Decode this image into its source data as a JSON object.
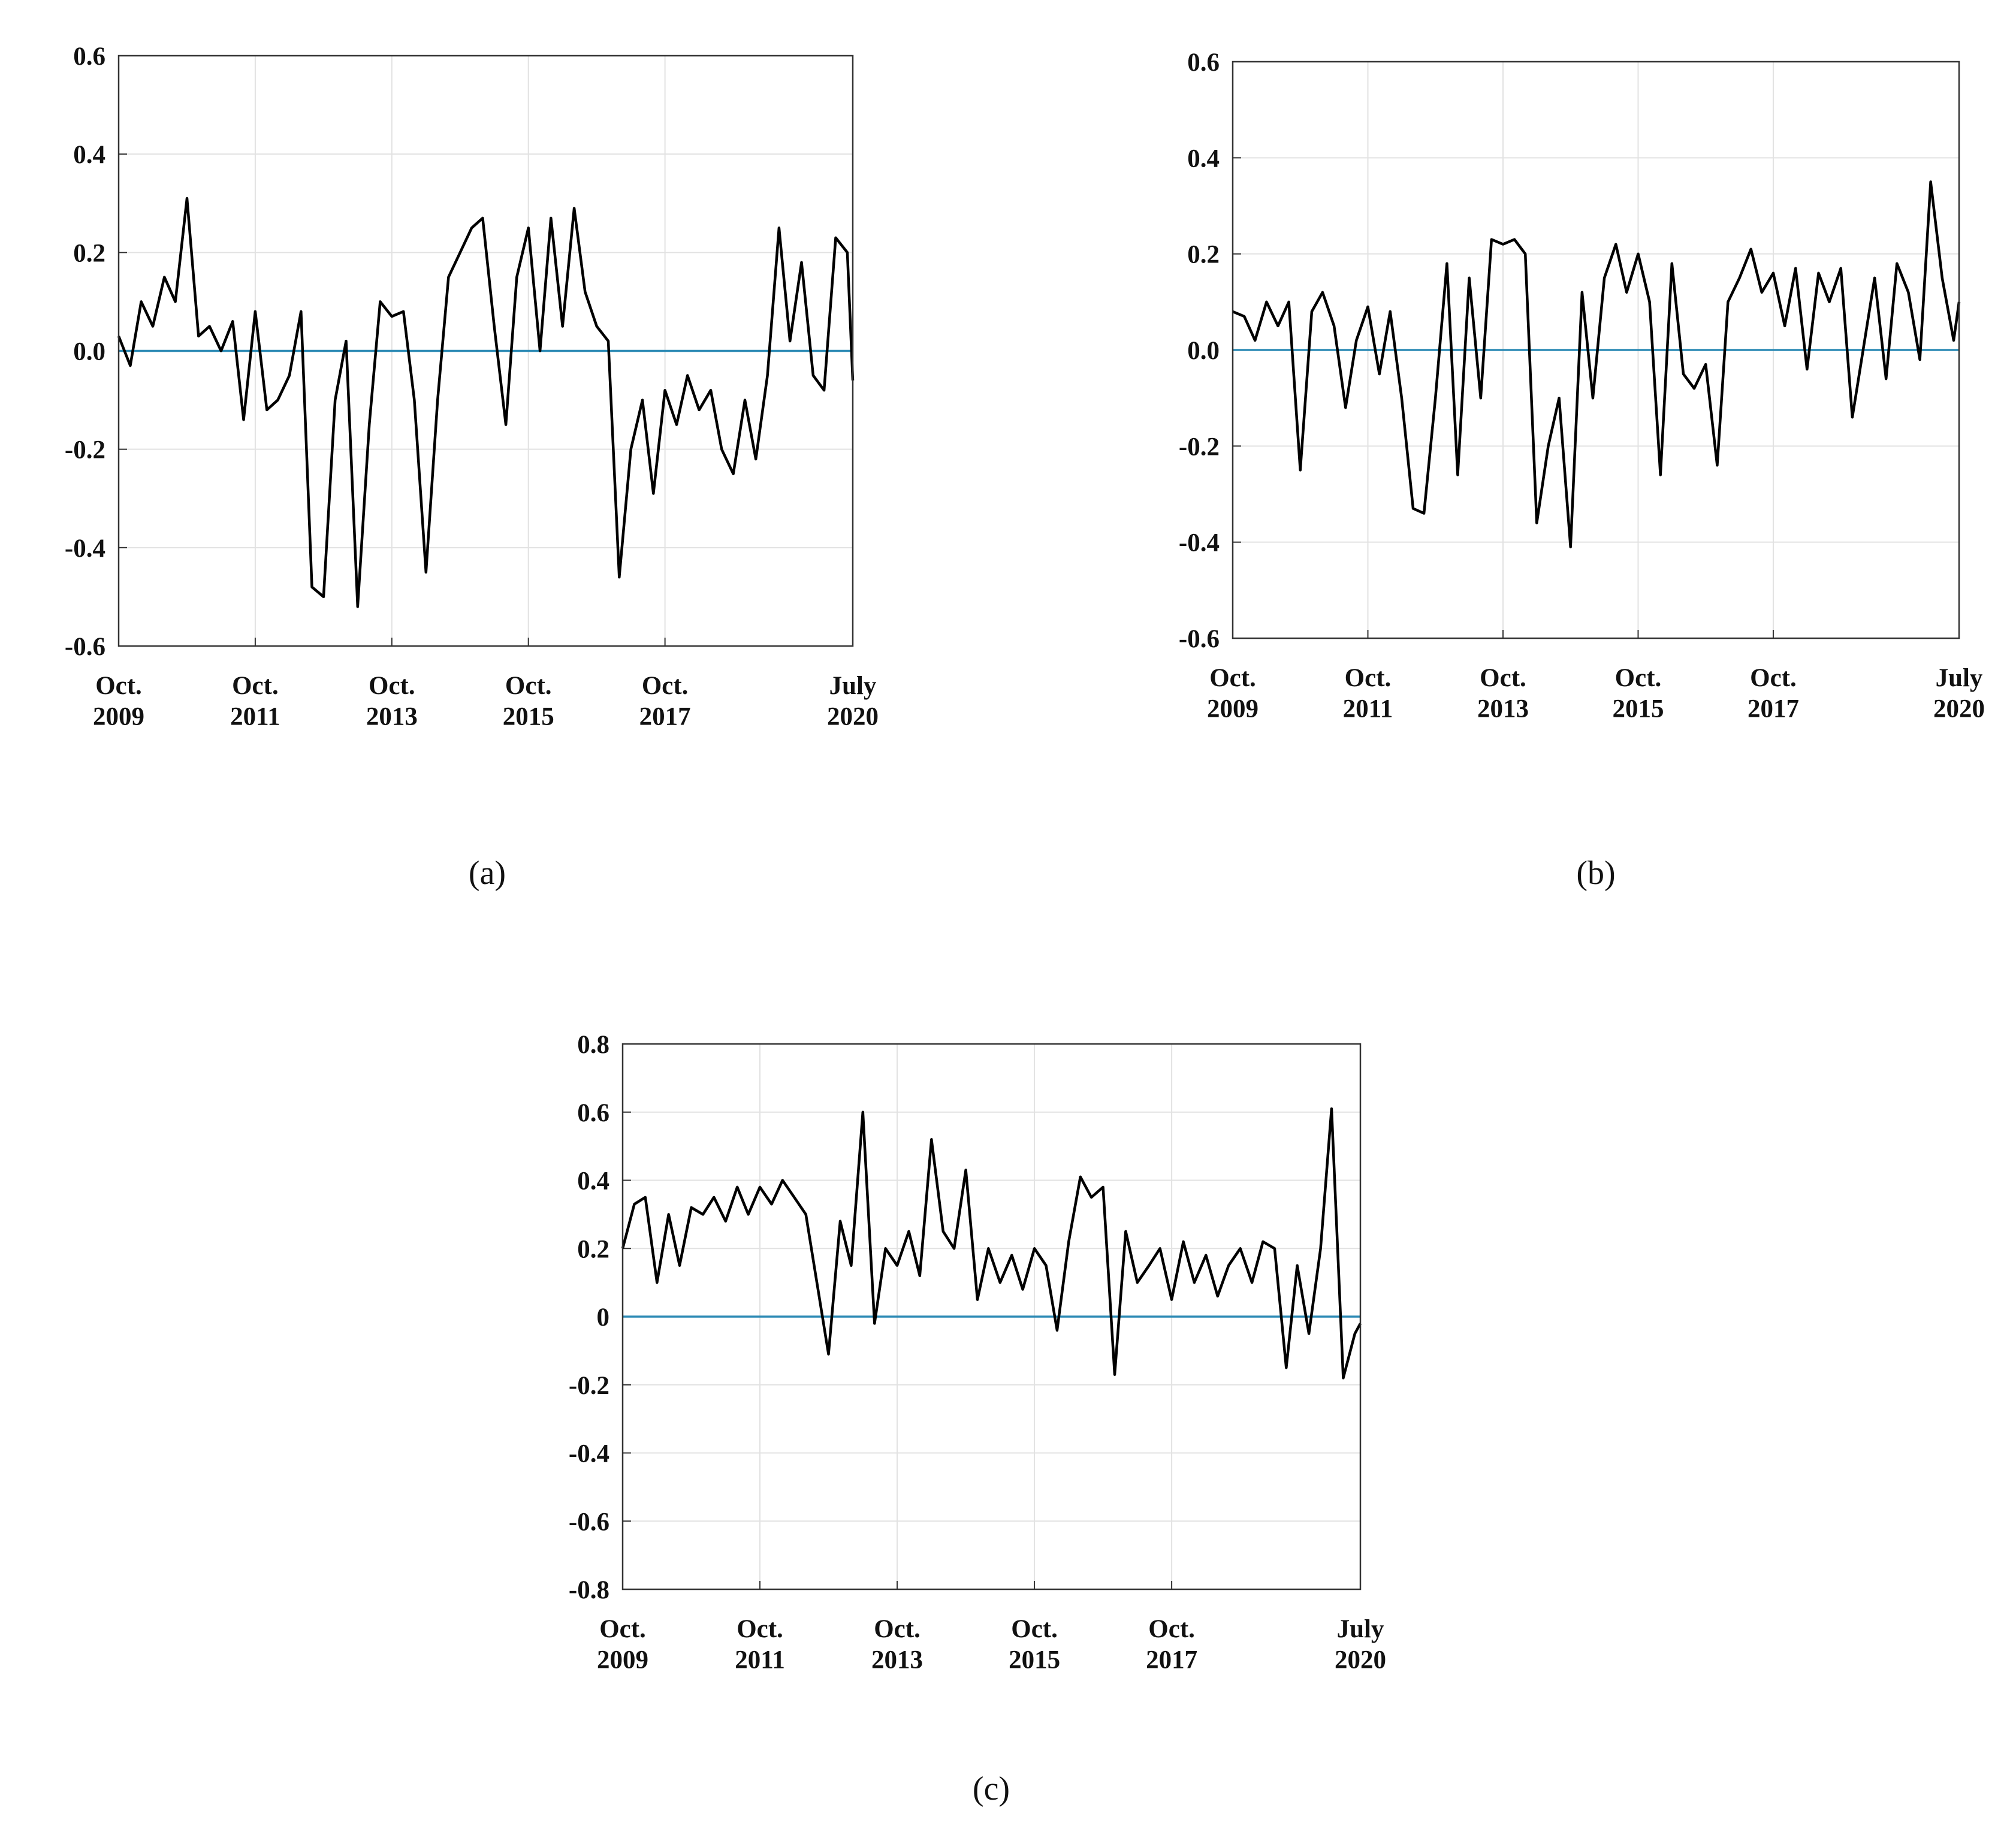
{
  "chart_data": [
    {
      "type": "line",
      "label": "(a)",
      "x": [
        2009.75,
        2009.92,
        2010.08,
        2010.25,
        2010.42,
        2010.58,
        2010.75,
        2010.92,
        2011.08,
        2011.25,
        2011.42,
        2011.58,
        2011.75,
        2011.92,
        2012.08,
        2012.25,
        2012.42,
        2012.58,
        2012.75,
        2012.92,
        2013.08,
        2013.25,
        2013.42,
        2013.58,
        2013.75,
        2013.92,
        2014.08,
        2014.25,
        2014.42,
        2014.58,
        2014.75,
        2014.92,
        2015.08,
        2015.25,
        2015.42,
        2015.58,
        2015.75,
        2015.92,
        2016.08,
        2016.25,
        2016.42,
        2016.58,
        2016.75,
        2016.92,
        2017.08,
        2017.25,
        2017.42,
        2017.58,
        2017.75,
        2017.92,
        2018.08,
        2018.25,
        2018.42,
        2018.58,
        2018.75,
        2018.92,
        2019.08,
        2019.25,
        2019.42,
        2019.58,
        2019.75,
        2019.92,
        2020.08,
        2020.25,
        2020.42,
        2020.5
      ],
      "values": [
        0.03,
        -0.03,
        0.1,
        0.05,
        0.15,
        0.1,
        0.31,
        0.03,
        0.05,
        0.0,
        0.06,
        -0.14,
        0.08,
        -0.12,
        -0.1,
        -0.05,
        0.08,
        -0.48,
        -0.5,
        -0.1,
        0.02,
        -0.52,
        -0.15,
        0.1,
        0.07,
        0.08,
        -0.1,
        -0.45,
        -0.1,
        0.15,
        0.2,
        0.25,
        0.27,
        0.05,
        -0.15,
        0.15,
        0.25,
        0.0,
        0.27,
        0.05,
        0.29,
        0.12,
        0.05,
        0.02,
        -0.46,
        -0.2,
        -0.1,
        -0.29,
        -0.08,
        -0.15,
        -0.05,
        -0.12,
        -0.08,
        -0.2,
        -0.25,
        -0.1,
        -0.22,
        -0.05,
        0.25,
        0.02,
        0.18,
        -0.05,
        -0.08,
        0.23,
        0.2,
        -0.06
      ],
      "color": "#000000",
      "xlim": [
        2009.75,
        2020.5
      ],
      "xticks": [
        {
          "value": 2009.75,
          "label": "Oct.\n2009"
        },
        {
          "value": 2011.75,
          "label": "Oct.\n2011"
        },
        {
          "value": 2013.75,
          "label": "Oct.\n2013"
        },
        {
          "value": 2015.75,
          "label": "Oct.\n2015"
        },
        {
          "value": 2017.75,
          "label": "Oct.\n2017"
        },
        {
          "value": 2020.5,
          "label": "July\n2020"
        }
      ],
      "ylim": [
        -0.6,
        0.6
      ],
      "yticks": [
        -0.6,
        -0.4,
        -0.2,
        {
          "value": 0,
          "label": "0.0"
        },
        0.2,
        0.4,
        0.6
      ],
      "grid": true,
      "reference_line": {
        "value": 0,
        "color": "#2e8bb5"
      }
    },
    {
      "type": "line",
      "label": "(b)",
      "x": [
        2009.75,
        2009.92,
        2010.08,
        2010.25,
        2010.42,
        2010.58,
        2010.75,
        2010.92,
        2011.08,
        2011.25,
        2011.42,
        2011.58,
        2011.75,
        2011.92,
        2012.08,
        2012.25,
        2012.42,
        2012.58,
        2012.75,
        2012.92,
        2013.08,
        2013.25,
        2013.42,
        2013.58,
        2013.75,
        2013.92,
        2014.08,
        2014.25,
        2014.42,
        2014.58,
        2014.75,
        2014.92,
        2015.08,
        2015.25,
        2015.42,
        2015.58,
        2015.75,
        2015.92,
        2016.08,
        2016.25,
        2016.42,
        2016.58,
        2016.75,
        2016.92,
        2017.08,
        2017.25,
        2017.42,
        2017.58,
        2017.75,
        2017.92,
        2018.08,
        2018.25,
        2018.42,
        2018.58,
        2018.75,
        2018.92,
        2019.08,
        2019.25,
        2019.42,
        2019.58,
        2019.75,
        2019.92,
        2020.08,
        2020.25,
        2020.42,
        2020.5
      ],
      "values": [
        0.08,
        0.07,
        0.02,
        0.1,
        0.05,
        0.1,
        -0.25,
        0.08,
        0.12,
        0.05,
        -0.12,
        0.02,
        0.09,
        -0.05,
        0.08,
        -0.1,
        -0.33,
        -0.34,
        -0.1,
        0.18,
        -0.26,
        0.15,
        -0.1,
        0.23,
        0.22,
        0.23,
        0.2,
        -0.36,
        -0.2,
        -0.1,
        -0.41,
        0.12,
        -0.1,
        0.15,
        0.22,
        0.12,
        0.2,
        0.1,
        -0.26,
        0.18,
        -0.05,
        -0.08,
        -0.03,
        -0.24,
        0.1,
        0.15,
        0.21,
        0.12,
        0.16,
        0.05,
        0.17,
        -0.04,
        0.16,
        0.1,
        0.17,
        -0.14,
        0.0,
        0.15,
        -0.06,
        0.18,
        0.12,
        -0.02,
        0.35,
        0.15,
        0.02,
        0.1
      ],
      "color": "#000000",
      "xlim": [
        2009.75,
        2020.5
      ],
      "xticks": [
        {
          "value": 2009.75,
          "label": "Oct.\n2009"
        },
        {
          "value": 2011.75,
          "label": "Oct.\n2011"
        },
        {
          "value": 2013.75,
          "label": "Oct.\n2013"
        },
        {
          "value": 2015.75,
          "label": "Oct.\n2015"
        },
        {
          "value": 2017.75,
          "label": "Oct.\n2017"
        },
        {
          "value": 2020.5,
          "label": "July\n2020"
        }
      ],
      "ylim": [
        -0.6,
        0.6
      ],
      "yticks": [
        -0.6,
        -0.4,
        -0.2,
        {
          "value": 0,
          "label": "0.0"
        },
        0.2,
        0.4,
        0.6
      ],
      "grid": true,
      "reference_line": {
        "value": 0,
        "color": "#2e8bb5"
      }
    },
    {
      "type": "line",
      "label": "(c)",
      "x": [
        2009.75,
        2009.92,
        2010.08,
        2010.25,
        2010.42,
        2010.58,
        2010.75,
        2010.92,
        2011.08,
        2011.25,
        2011.42,
        2011.58,
        2011.75,
        2011.92,
        2012.08,
        2012.25,
        2012.42,
        2012.58,
        2012.75,
        2012.92,
        2013.08,
        2013.25,
        2013.42,
        2013.58,
        2013.75,
        2013.92,
        2014.08,
        2014.25,
        2014.42,
        2014.58,
        2014.75,
        2014.92,
        2015.08,
        2015.25,
        2015.42,
        2015.58,
        2015.75,
        2015.92,
        2016.08,
        2016.25,
        2016.42,
        2016.58,
        2016.75,
        2016.92,
        2017.08,
        2017.25,
        2017.42,
        2017.58,
        2017.75,
        2017.92,
        2018.08,
        2018.25,
        2018.42,
        2018.58,
        2018.75,
        2018.92,
        2019.08,
        2019.25,
        2019.42,
        2019.58,
        2019.75,
        2019.92,
        2020.08,
        2020.25,
        2020.42,
        2020.5
      ],
      "values": [
        0.2,
        0.33,
        0.35,
        0.1,
        0.3,
        0.15,
        0.32,
        0.3,
        0.35,
        0.28,
        0.38,
        0.3,
        0.38,
        0.33,
        0.4,
        0.35,
        0.3,
        0.1,
        -0.11,
        0.28,
        0.15,
        0.6,
        -0.02,
        0.2,
        0.15,
        0.25,
        0.12,
        0.52,
        0.25,
        0.2,
        0.43,
        0.05,
        0.2,
        0.1,
        0.18,
        0.08,
        0.2,
        0.15,
        -0.04,
        0.22,
        0.41,
        0.35,
        0.38,
        -0.17,
        0.25,
        0.1,
        0.15,
        0.2,
        0.05,
        0.22,
        0.1,
        0.18,
        0.06,
        0.15,
        0.2,
        0.1,
        0.22,
        0.2,
        -0.15,
        0.15,
        -0.05,
        0.2,
        0.61,
        -0.18,
        -0.05,
        -0.02
      ],
      "color": "#000000",
      "xlim": [
        2009.75,
        2020.5
      ],
      "xticks": [
        {
          "value": 2009.75,
          "label": "Oct.\n2009"
        },
        {
          "value": 2011.75,
          "label": "Oct.\n2011"
        },
        {
          "value": 2013.75,
          "label": "Oct.\n2013"
        },
        {
          "value": 2015.75,
          "label": "Oct.\n2015"
        },
        {
          "value": 2017.75,
          "label": "Oct.\n2017"
        },
        {
          "value": 2020.5,
          "label": "July\n2020"
        }
      ],
      "ylim": [
        -0.8,
        0.8
      ],
      "yticks": [
        -0.8,
        -0.6,
        -0.4,
        -0.2,
        0,
        0.2,
        0.4,
        0.6,
        0.8
      ],
      "grid": true,
      "reference_line": {
        "value": 0,
        "color": "#2e8bb5"
      }
    }
  ]
}
